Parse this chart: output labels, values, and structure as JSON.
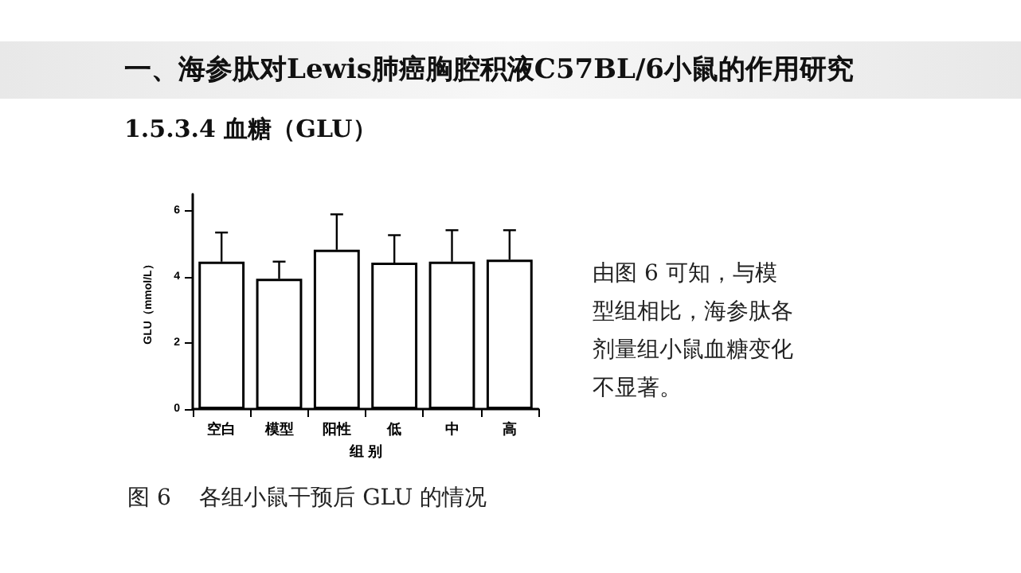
{
  "chart_data": {
    "type": "bar",
    "title": "一、海参肽对Lewis肺癌胸腔积液C57BL/6小鼠的作用研究",
    "subtitle": "1.5.3.4 血糖（GLU）",
    "xlabel": "组 别",
    "ylabel": "GLU（mmol/L）",
    "categories": [
      "空白",
      "模型",
      "阳性",
      "低",
      "中",
      "高"
    ],
    "values": [
      4.46,
      3.94,
      4.82,
      4.43,
      4.46,
      4.52
    ],
    "errors": [
      [
        4.46,
        5.34
      ],
      [
        3.94,
        4.46
      ],
      [
        4.82,
        5.89
      ],
      [
        4.43,
        5.26
      ],
      [
        4.46,
        5.41
      ],
      [
        4.52,
        5.41
      ]
    ],
    "color": "#ffffff",
    "ylim": [
      0,
      6.5
    ],
    "yticks": [
      0,
      2,
      4,
      6
    ],
    "grid": false,
    "annotations": [
      "由图 6 可知，与模型组相比，海参肽各剂量组小鼠血糖变化不显著。",
      "图 6    各组小鼠干预后 GLU 的情况"
    ]
  }
}
